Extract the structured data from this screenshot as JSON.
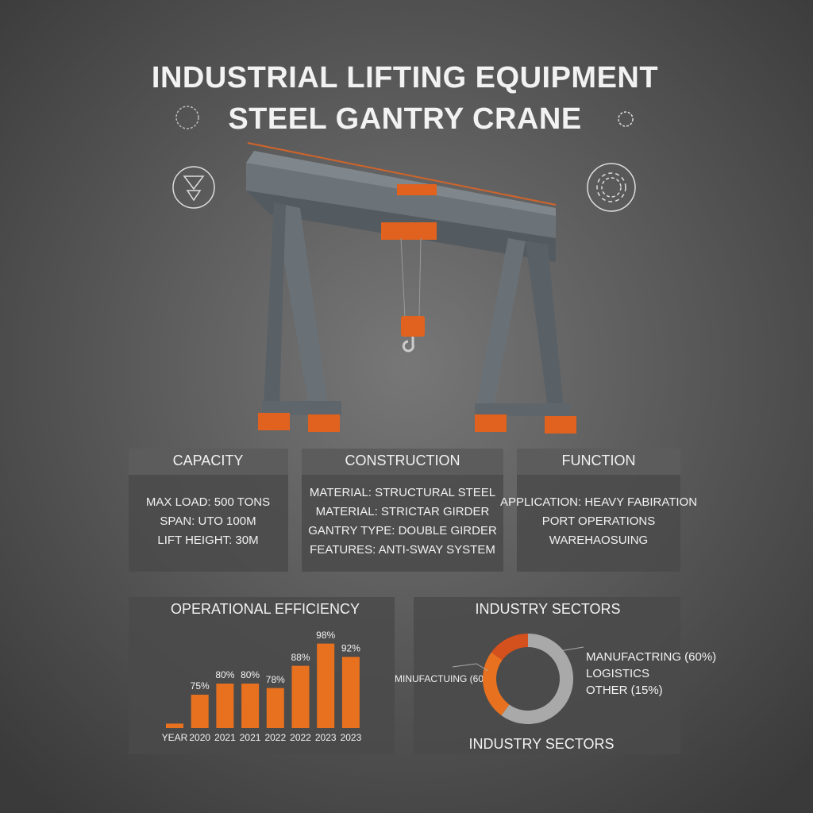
{
  "title_lines": [
    "INDUSTRIAL LIFTING EQUIPMENT",
    "STEEL GANTRY CRANE"
  ],
  "panels": [
    {
      "heading": "CAPACITY",
      "lines": [
        "MAX LOAD: 500 TONS",
        "SPAN: UTO 100M",
        "LIFT HEIGHT: 30M"
      ]
    },
    {
      "heading": "CONSTRUCTION",
      "lines": [
        "MATERIAL: STRUCTURAL STEEL",
        "MATERIAL: STRICTAR GIRDER",
        "GANTRY TYPE: DOUBLE GIRDER",
        "FEATURES: ANTI-SWAY SYSTEM"
      ]
    },
    {
      "heading": "FUNCTION",
      "lines": [
        "APPLICATION: HEAVY FABIRATION",
        "PORT OPERATIONS",
        "WAREHAOSUING"
      ]
    }
  ],
  "chart_data": [
    {
      "type": "bar",
      "title": "OPERATIONAL EFFICIENCY",
      "categories": [
        "YEAR",
        "2020",
        "2021",
        "2021",
        "2022",
        "2022",
        "2023",
        "2023"
      ],
      "values": [
        62,
        75,
        80,
        80,
        78,
        88,
        98,
        92
      ],
      "value_labels": [
        null,
        "75%",
        "80%",
        "80%",
        "78%",
        "88%",
        "98%",
        "92%"
      ],
      "color": "#e8711f",
      "ylim": [
        60,
        100
      ]
    },
    {
      "type": "pie",
      "title": "INDUSTRY SECTORS",
      "categories": [
        "MANUFACTRING (60%)",
        "LOGISTICS",
        "OTHER (15%)"
      ],
      "values": [
        60,
        25,
        15
      ],
      "colors": [
        "#a9a9a9",
        "#e8711f",
        "#d4501c"
      ],
      "annotation": "MINUFACTUING (60%)",
      "caption": "INDUSTRY SECTORS"
    }
  ]
}
